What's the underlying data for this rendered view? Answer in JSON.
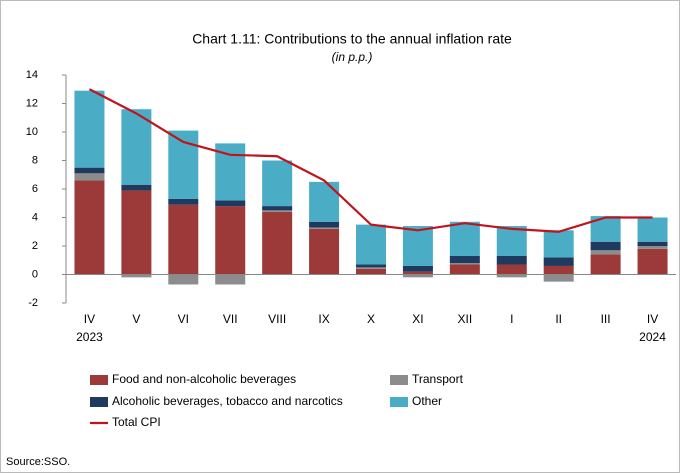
{
  "chart_data": {
    "type": "bar",
    "title": "Chart 1.11: Contributions to the annual inflation rate",
    "subtitle": "(in p.p.)",
    "source": "Source:SSO.",
    "stacked": true,
    "categories": [
      "IV",
      "V",
      "VI",
      "VII",
      "VIII",
      "IX",
      "X",
      "XI",
      "XII",
      "I",
      "II",
      "III",
      "IV"
    ],
    "category_years": [
      "2023",
      null,
      null,
      null,
      null,
      null,
      null,
      null,
      null,
      null,
      null,
      null,
      "2024"
    ],
    "ylim": [
      -2,
      14
    ],
    "yticks": [
      -2,
      0,
      2,
      4,
      6,
      8,
      10,
      12,
      14
    ],
    "series": [
      {
        "name": "Food and non-alcoholic beverages",
        "color": "#9b3a38",
        "values": [
          6.6,
          5.9,
          4.9,
          4.8,
          4.4,
          3.2,
          0.4,
          0.2,
          0.7,
          0.7,
          0.6,
          1.4,
          1.8
        ]
      },
      {
        "name": "Transport",
        "color": "#8c8c8c",
        "values": [
          0.5,
          -0.2,
          -0.7,
          -0.7,
          0.1,
          0.1,
          0.1,
          -0.2,
          0.1,
          -0.2,
          -0.5,
          0.3,
          0.2
        ]
      },
      {
        "name": "Alcoholic beverages, tobacco and narcotics",
        "color": "#1f3a5f",
        "values": [
          0.4,
          0.4,
          0.4,
          0.4,
          0.3,
          0.4,
          0.2,
          0.4,
          0.5,
          0.6,
          0.6,
          0.6,
          0.3
        ]
      },
      {
        "name": "Other",
        "color": "#4bacc6",
        "values": [
          5.4,
          5.3,
          4.8,
          4.0,
          3.2,
          2.8,
          2.8,
          2.8,
          2.4,
          2.1,
          1.9,
          1.8,
          1.7
        ]
      },
      {
        "name": "Total CPI",
        "color": "#c0141c",
        "type": "line",
        "values": [
          13.0,
          11.3,
          9.3,
          8.4,
          8.3,
          6.6,
          3.5,
          3.1,
          3.6,
          3.2,
          3.0,
          4.0,
          4.0
        ]
      }
    ]
  }
}
